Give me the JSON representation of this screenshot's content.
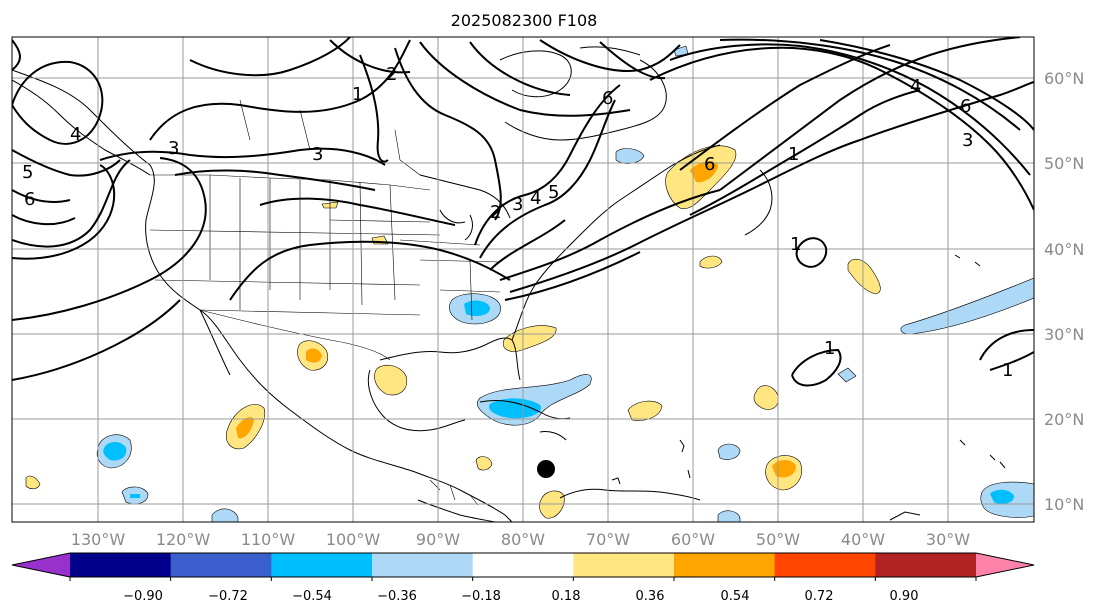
{
  "title": "2025082300 F108",
  "lat_labels": [
    "60°N",
    "50°N",
    "40°N",
    "30°N",
    "20°N",
    "10°N"
  ],
  "lon_labels": [
    "130°W",
    "120°W",
    "110°W",
    "100°W",
    "90°W",
    "80°W",
    "70°W",
    "60°W",
    "50°W",
    "40°W",
    "30°W"
  ],
  "colorbar": {
    "ticks": [
      "−0.90",
      "−0.72",
      "−0.54",
      "−0.36",
      "−0.18",
      "0.18",
      "0.36",
      "0.54",
      "0.72",
      "0.90"
    ],
    "colors": [
      "#9932cc",
      "#00008b",
      "#3a5fcd",
      "#00bfff",
      "#add8f6",
      "#ffffff",
      "#ffe680",
      "#ffa500",
      "#ff4500",
      "#b22222",
      "#ff82ab"
    ]
  },
  "contour_labels": [
    "1",
    "2",
    "3",
    "3",
    "4",
    "5",
    "6",
    "6",
    "4",
    "6",
    "3",
    "1",
    "1",
    "1",
    "1",
    "2",
    "3",
    "4",
    "5",
    "6"
  ],
  "marker": {
    "label": "storm-center",
    "lon": -77,
    "lat": 14
  }
}
